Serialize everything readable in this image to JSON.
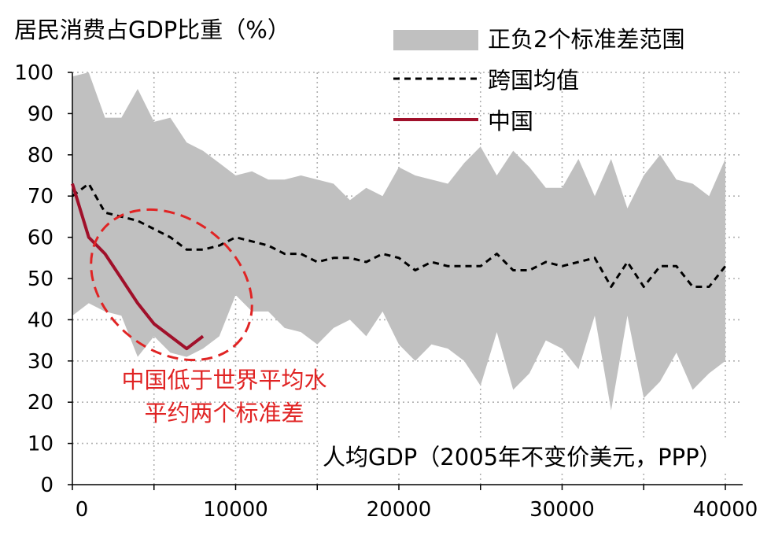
{
  "chart_data": {
    "type": "line",
    "ylabel": "居民消费占GDP比重（%）",
    "xlabel": "人均GDP（2005年不变价美元，PPP）",
    "xlim": [
      0,
      40000
    ],
    "ylim": [
      0,
      100
    ],
    "xticks": [
      0,
      10000,
      20000,
      30000,
      40000
    ],
    "xtick_labels": [
      "0",
      "10000",
      "20000",
      "30000",
      "40000"
    ],
    "yticks": [
      0,
      10,
      20,
      30,
      40,
      50,
      60,
      70,
      80,
      90,
      100
    ],
    "ytick_labels": [
      "0",
      "10",
      "20",
      "30",
      "40",
      "50",
      "60",
      "70",
      "80",
      "90",
      "100"
    ],
    "grid": true,
    "legend_position": "top-right",
    "legend": [
      {
        "label": "正负2个标准差范围",
        "style": "band",
        "color": "#c0c0c0"
      },
      {
        "label": "跨国均值",
        "style": "dashed",
        "color": "#000000"
      },
      {
        "label": "中国",
        "style": "solid",
        "color": "#a0102a"
      }
    ],
    "band": {
      "name": "正负2个标准差范围",
      "color": "#c0c0c0",
      "x": [
        0,
        1000,
        2000,
        3000,
        4000,
        5000,
        6000,
        7000,
        8000,
        9000,
        10000,
        11000,
        12000,
        13000,
        14000,
        15000,
        16000,
        17000,
        18000,
        19000,
        20000,
        21000,
        22000,
        23000,
        24000,
        25000,
        26000,
        27000,
        28000,
        29000,
        30000,
        31000,
        32000,
        33000,
        34000,
        35000,
        36000,
        37000,
        38000,
        39000,
        40000
      ],
      "upper": [
        99,
        100,
        89,
        89,
        96,
        88,
        89,
        83,
        81,
        78,
        75,
        76,
        74,
        74,
        75,
        74,
        73,
        69,
        72,
        70,
        77,
        75,
        74,
        73,
        78,
        82,
        75,
        81,
        77,
        72,
        72,
        79,
        70,
        79,
        67,
        75,
        80,
        74,
        73,
        70,
        79
      ],
      "lower": [
        41,
        44,
        42,
        41,
        31,
        36,
        32,
        31,
        33,
        36,
        46,
        42,
        42,
        38,
        37,
        34,
        38,
        40,
        36,
        42,
        34,
        30,
        34,
        33,
        30,
        24,
        37,
        23,
        27,
        35,
        33,
        28,
        41,
        18,
        41,
        21,
        25,
        32,
        23,
        27,
        30
      ]
    },
    "series": [
      {
        "name": "跨国均值",
        "style": "dashed",
        "color": "#000000",
        "x": [
          0,
          1000,
          2000,
          3000,
          4000,
          5000,
          6000,
          7000,
          8000,
          9000,
          10000,
          11000,
          12000,
          13000,
          14000,
          15000,
          16000,
          17000,
          18000,
          19000,
          20000,
          21000,
          22000,
          23000,
          24000,
          25000,
          26000,
          27000,
          28000,
          29000,
          30000,
          31000,
          32000,
          33000,
          34000,
          35000,
          36000,
          37000,
          38000,
          39000,
          40000
        ],
        "values": [
          70,
          73,
          66,
          65,
          64,
          62,
          60,
          57,
          57,
          58,
          60,
          59,
          58,
          56,
          56,
          54,
          55,
          55,
          54,
          56,
          55,
          52,
          54,
          53,
          53,
          53,
          56,
          52,
          52,
          54,
          53,
          54,
          55,
          48,
          54,
          48,
          53,
          53,
          48,
          48,
          53
        ]
      },
      {
        "name": "中国",
        "style": "solid",
        "color": "#a0102a",
        "x": [
          0,
          1000,
          2000,
          3000,
          4000,
          5000,
          6000,
          7000,
          8000
        ],
        "values": [
          73,
          60,
          56,
          50,
          44,
          39,
          36,
          33,
          36
        ]
      }
    ],
    "annotation": {
      "lines": [
        "中国低于世界平均水",
        "平约两个标准差"
      ],
      "color": "#e02424",
      "ellipse_color": "#e02424"
    }
  }
}
